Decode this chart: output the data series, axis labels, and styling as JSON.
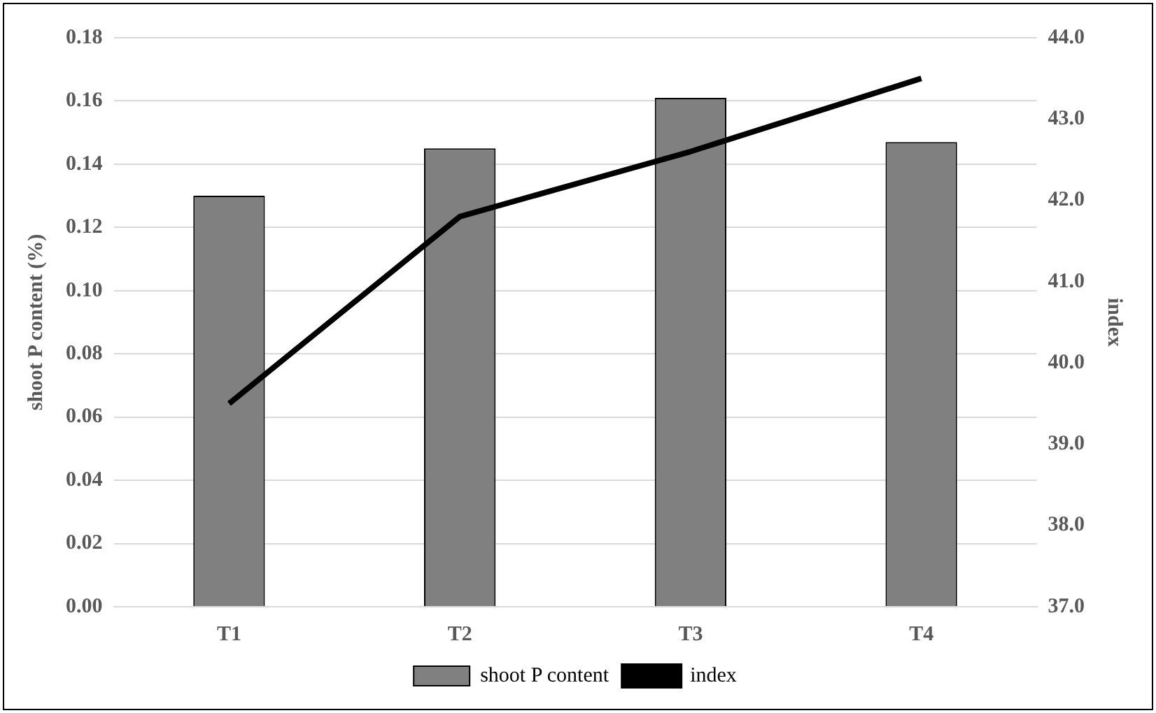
{
  "chart_data": {
    "type": "bar",
    "categories": [
      "T1",
      "T2",
      "T3",
      "T4"
    ],
    "ylabel": "shoot P content (%)",
    "y2label": "index",
    "series": [
      {
        "name": "shoot P content",
        "color": "#808080",
        "values": [
          0.13,
          0.145,
          0.161,
          0.147
        ]
      },
      {
        "name": "index",
        "type": "line",
        "axis": "y2",
        "color": "#000000",
        "values": [
          39.5,
          41.8,
          42.6,
          43.5
        ]
      }
    ],
    "ylim": [
      0,
      0.18
    ],
    "yticks": [
      {
        "value": 0,
        "label": "0.00"
      },
      {
        "value": 0.02,
        "label": "0.02"
      },
      {
        "value": 0.04,
        "label": "0.04"
      },
      {
        "value": 0.06,
        "label": "0.06"
      },
      {
        "value": 0.08,
        "label": "0.08"
      },
      {
        "value": 0.1,
        "label": "0.10"
      },
      {
        "value": 0.12,
        "label": "0.12"
      },
      {
        "value": 0.14,
        "label": "0.14"
      },
      {
        "value": 0.16,
        "label": "0.16"
      },
      {
        "value": 0.18,
        "label": "0.18"
      }
    ],
    "y2lim": [
      37,
      44
    ],
    "y2ticks": [
      {
        "value": 37,
        "label": "37.0"
      },
      {
        "value": 38,
        "label": "38.0"
      },
      {
        "value": 39,
        "label": "39.0"
      },
      {
        "value": 40,
        "label": "40.0"
      },
      {
        "value": 41,
        "label": "41.0"
      },
      {
        "value": 42,
        "label": "42.0"
      },
      {
        "value": 43,
        "label": "43.0"
      },
      {
        "value": 44,
        "label": "44.0"
      }
    ],
    "grid": "y",
    "legend": "bottom",
    "marker": "none",
    "line_style": "solid"
  }
}
